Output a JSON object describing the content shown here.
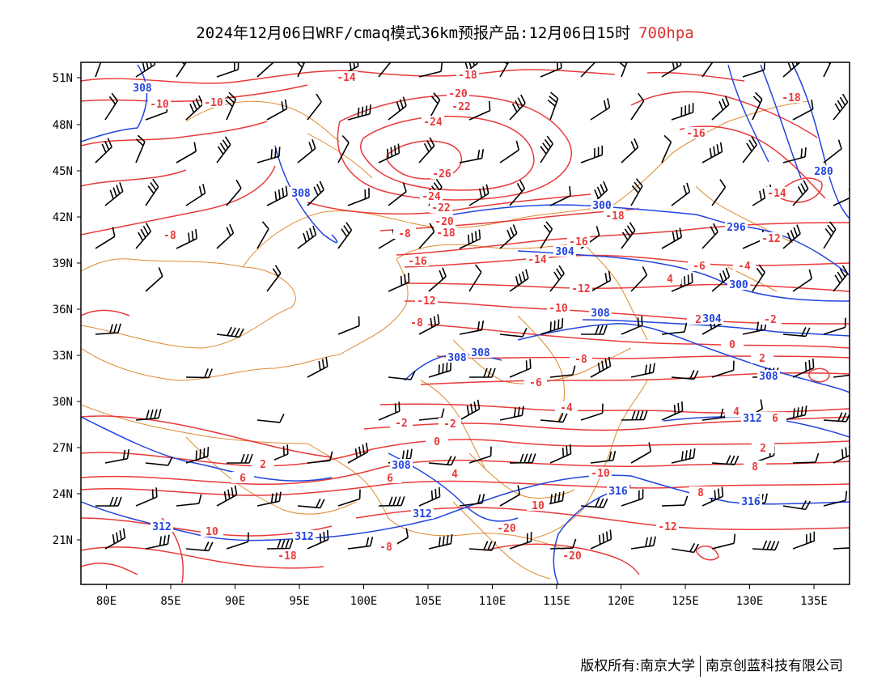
{
  "title": {
    "main": "2024年12月06日WRF/cmaq模式36km预报产品:12月06日15时",
    "level": "700hpa"
  },
  "colors": {
    "temperature": "#e83a3a",
    "height": "#2244dd",
    "boundary": "#e08a30",
    "wind": "#000000"
  },
  "axes": {
    "lat_labels": [
      "51N",
      "48N",
      "45N",
      "42N",
      "39N",
      "36N",
      "33N",
      "30N",
      "27N",
      "24N",
      "21N"
    ],
    "lon_labels": [
      "80E",
      "85E",
      "90E",
      "95E",
      "100E",
      "105E",
      "110E",
      "115E",
      "120E",
      "125E",
      "130E",
      "135E"
    ]
  },
  "contour_labels": {
    "temperature": [
      "-14",
      "-18",
      "-10",
      "-10",
      "-20",
      "-22",
      "-24",
      "-26",
      "-24",
      "-22",
      "-20",
      "-18",
      "-8",
      "-8",
      "-16",
      "-14",
      "-18",
      "-16",
      "-12",
      "-12",
      "-10",
      "-8",
      "-8",
      "-6",
      "-4",
      "-2",
      "-2",
      "0",
      "2",
      "2",
      "4",
      "6",
      "6",
      "8",
      "10",
      "10",
      "-20",
      "-18",
      "-20",
      "-18",
      "-16",
      "-14",
      "-12",
      "-6",
      "-4",
      "-2",
      "0",
      "2",
      "4",
      "6",
      "8",
      "-12",
      "-10",
      "-8",
      "4",
      "2",
      "-16"
    ],
    "height": [
      "308",
      "308",
      "300",
      "296",
      "304",
      "300",
      "308",
      "304",
      "308",
      "308",
      "308",
      "312",
      "312",
      "312",
      "316",
      "316",
      "312",
      "308",
      "280"
    ]
  },
  "footer": {
    "left": "版权所有:南京大学",
    "right": "南京创蓝科技有限公司"
  }
}
